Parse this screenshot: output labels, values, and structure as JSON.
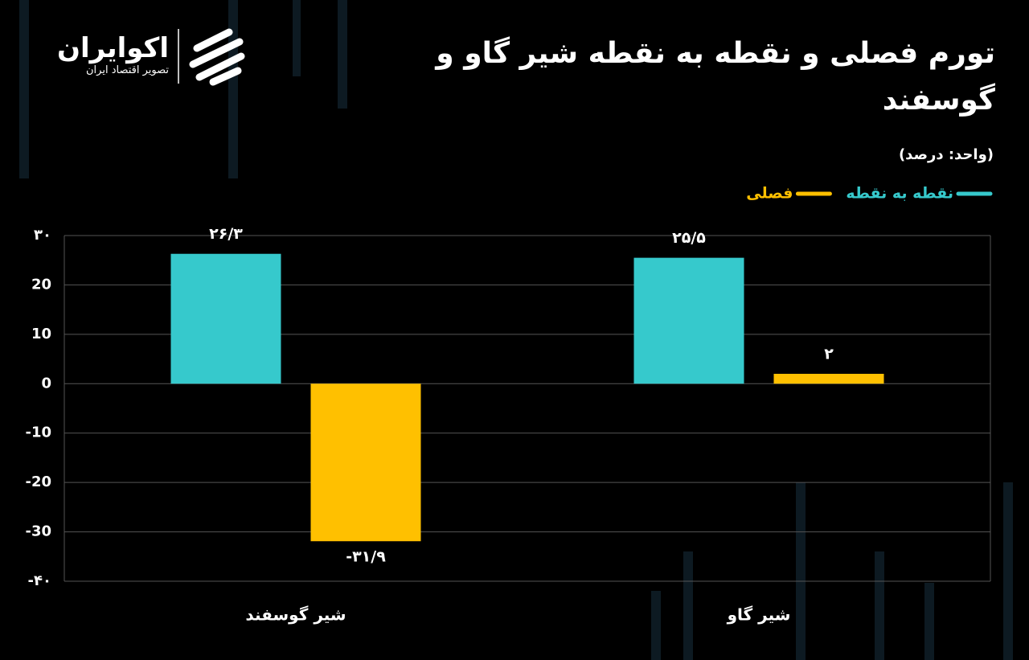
{
  "brand": {
    "name": "اکوایران",
    "tagline": "تصویر اقتصاد ایران"
  },
  "chart_data": {
    "type": "bar",
    "title": "تورم فصلی  و نقطه به نقطه شیر گاو  و گوسفند",
    "subtitle": "(واحد: درصد)",
    "categories": [
      "شیر گوسفند",
      "شیر گاو"
    ],
    "series": [
      {
        "name": "نقطه به نقطه",
        "color": "#36c9cc",
        "values": [
          26.3,
          25.5
        ],
        "value_labels": [
          "۲۶/۳",
          "۲۵/۵"
        ]
      },
      {
        "name": "فصلی",
        "color": "#ffc000",
        "values": [
          -31.9,
          2
        ],
        "value_labels": [
          "-۳۱/۹",
          "۲"
        ]
      }
    ],
    "ylim": [
      -40,
      30
    ],
    "yticks": [
      {
        "value": 30,
        "label": "۳۰"
      },
      20,
      10,
      0,
      -10,
      -20,
      -30,
      {
        "value": -40,
        "label": "-۴۰"
      }
    ],
    "grid": true,
    "legend": "top-right"
  }
}
